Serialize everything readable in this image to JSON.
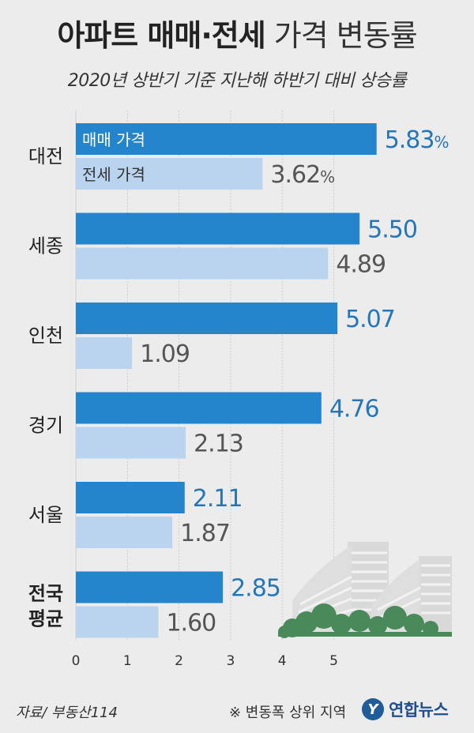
{
  "title": {
    "bold": "아파트 매매·전세",
    "light": "가격 변동률"
  },
  "subtitle": "2020년 상반기 기준 지난해 하반기 대비 상승률",
  "colors": {
    "sale": "#2585cc",
    "jeonse": "#bad4ef",
    "sale_text": "#2576b8",
    "jeonse_text": "#555555",
    "label": "#222222",
    "building": "#d9d9d9",
    "tree": "#4a8a5a"
  },
  "chart_data": {
    "type": "bar",
    "orientation": "horizontal",
    "categories": [
      "대전",
      "세종",
      "인천",
      "경기",
      "서울",
      "전국 평균"
    ],
    "bold_categories": [
      "전국 평균"
    ],
    "series": [
      {
        "name": "매매 가격",
        "values": [
          5.83,
          5.5,
          5.07,
          4.76,
          2.11,
          2.85
        ]
      },
      {
        "name": "전세 가격",
        "values": [
          3.62,
          4.89,
          1.09,
          2.13,
          1.87,
          1.6
        ]
      }
    ],
    "value_labels": {
      "sale": [
        "5.83",
        "5.50",
        "5.07",
        "4.76",
        "2.11",
        "2.85"
      ],
      "jeonse": [
        "3.62",
        "4.89",
        "1.09",
        "2.13",
        "1.87",
        "1.60"
      ]
    },
    "percent_suffix": "%",
    "xticks": [
      "0",
      "1",
      "2",
      "3",
      "4",
      "5"
    ],
    "xlim": [
      0,
      6
    ],
    "legend_placement": "inside-first-bars",
    "gridlines": true
  },
  "footer": {
    "source": "자료/ 부동산114",
    "note": "※ 변동폭 상위 지역",
    "logo_text": "연합뉴스",
    "logo_icon": "yonhap-logo-icon"
  }
}
